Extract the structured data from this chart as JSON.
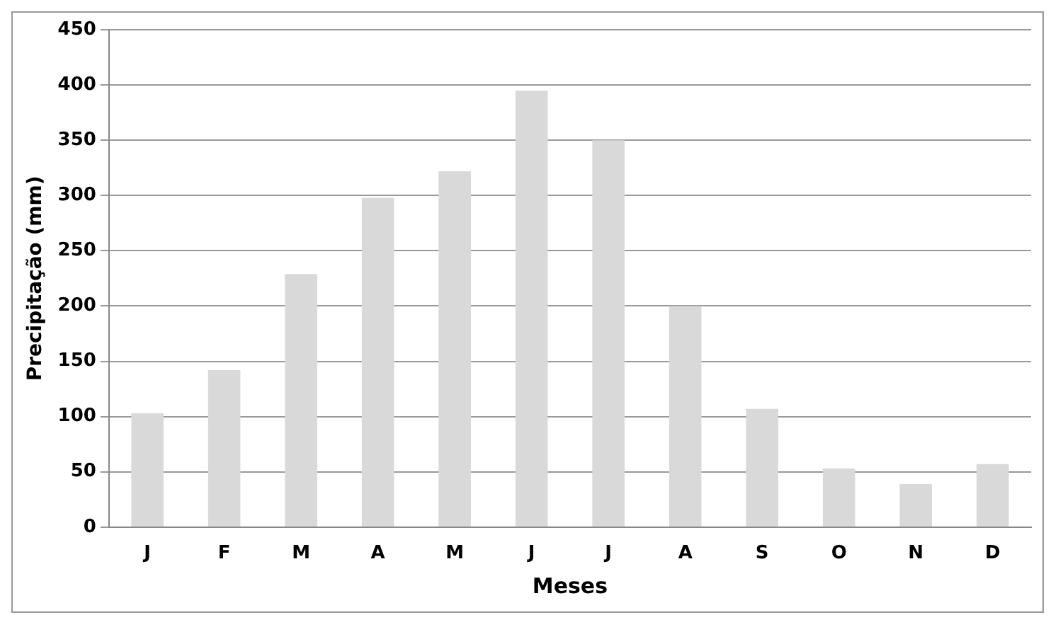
{
  "chart_data": {
    "type": "bar",
    "xlabel": "Meses",
    "ylabel": "Precipitação (mm)",
    "categories": [
      "J",
      "F",
      "M",
      "A",
      "M",
      "J",
      "J",
      "A",
      "S",
      "O",
      "N",
      "D"
    ],
    "values": [
      103,
      142,
      229,
      298,
      322,
      395,
      350,
      200,
      107,
      53,
      39,
      57
    ],
    "color": "#d9d9d9",
    "ylim": [
      0,
      450
    ],
    "yticks": [
      0,
      50,
      100,
      150,
      200,
      250,
      300,
      350,
      400,
      450
    ],
    "grid": "y",
    "legend": false
  }
}
